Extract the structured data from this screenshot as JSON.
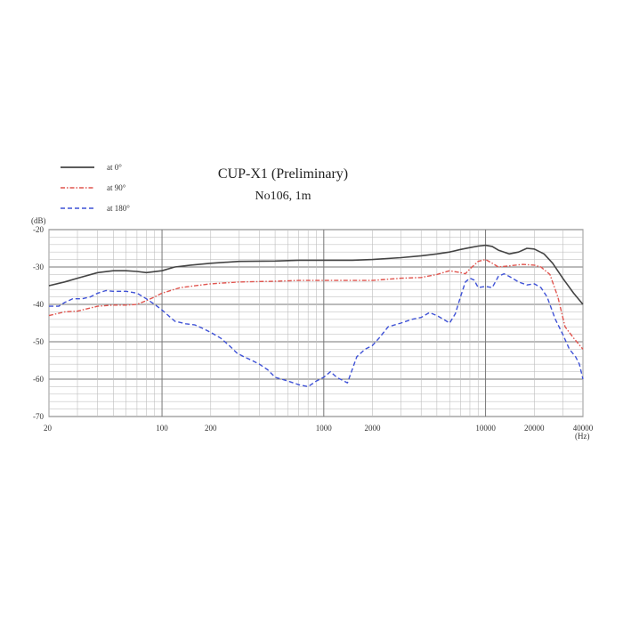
{
  "chart_data": {
    "type": "line",
    "title": "CUP-X1 (Preliminary)",
    "subtitle": "No106, 1m",
    "ylabel": "(dB)",
    "xlabel": "(Hz)",
    "xscale": "log",
    "xlim": [
      20,
      40000
    ],
    "ylim": [
      -70,
      -20
    ],
    "grid": true,
    "legend_position": "top-left",
    "x_ticks": [
      {
        "value": 20,
        "label": "20"
      },
      {
        "value": 100,
        "label": "100"
      },
      {
        "value": 200,
        "label": "200"
      },
      {
        "value": 1000,
        "label": "1000"
      },
      {
        "value": 2000,
        "label": "2000"
      },
      {
        "value": 10000,
        "label": "10000"
      },
      {
        "value": 20000,
        "label": "20000"
      },
      {
        "value": 40000,
        "label": "40000"
      }
    ],
    "y_ticks": [
      {
        "value": -20,
        "label": "-20"
      },
      {
        "value": -30,
        "label": "-30"
      },
      {
        "value": -40,
        "label": "-40"
      },
      {
        "value": -50,
        "label": "-50"
      },
      {
        "value": -60,
        "label": "-60"
      },
      {
        "value": -70,
        "label": "-70"
      }
    ],
    "series": [
      {
        "name": "at 0°",
        "color": "#444444",
        "dash": "solid",
        "points": [
          [
            20,
            -35
          ],
          [
            25,
            -34
          ],
          [
            30,
            -33
          ],
          [
            40,
            -31.5
          ],
          [
            50,
            -31
          ],
          [
            60,
            -31
          ],
          [
            70,
            -31.2
          ],
          [
            80,
            -31.5
          ],
          [
            100,
            -31
          ],
          [
            120,
            -30
          ],
          [
            150,
            -29.5
          ],
          [
            200,
            -29
          ],
          [
            300,
            -28.5
          ],
          [
            500,
            -28.4
          ],
          [
            700,
            -28.2
          ],
          [
            1000,
            -28.2
          ],
          [
            1500,
            -28.2
          ],
          [
            2000,
            -28
          ],
          [
            3000,
            -27.5
          ],
          [
            4000,
            -27
          ],
          [
            5000,
            -26.5
          ],
          [
            6000,
            -26
          ],
          [
            7000,
            -25.3
          ],
          [
            8000,
            -24.8
          ],
          [
            9000,
            -24.4
          ],
          [
            10000,
            -24.2
          ],
          [
            11000,
            -24.5
          ],
          [
            12000,
            -25.5
          ],
          [
            14000,
            -26.5
          ],
          [
            16000,
            -26
          ],
          [
            18000,
            -25
          ],
          [
            20000,
            -25.2
          ],
          [
            23000,
            -26.5
          ],
          [
            26000,
            -29
          ],
          [
            30000,
            -33
          ],
          [
            35000,
            -37
          ],
          [
            40000,
            -40
          ]
        ]
      },
      {
        "name": "at 90°",
        "color": "#e0554f",
        "dash": "dashdot",
        "points": [
          [
            20,
            -43
          ],
          [
            25,
            -42
          ],
          [
            30,
            -41.8
          ],
          [
            40,
            -40.5
          ],
          [
            50,
            -40.2
          ],
          [
            60,
            -40.2
          ],
          [
            70,
            -40
          ],
          [
            80,
            -39
          ],
          [
            90,
            -38
          ],
          [
            100,
            -37
          ],
          [
            130,
            -35.5
          ],
          [
            200,
            -34.5
          ],
          [
            300,
            -34
          ],
          [
            500,
            -33.8
          ],
          [
            700,
            -33.6
          ],
          [
            1000,
            -33.6
          ],
          [
            1500,
            -33.6
          ],
          [
            2000,
            -33.6
          ],
          [
            3000,
            -33
          ],
          [
            4000,
            -32.8
          ],
          [
            5000,
            -32
          ],
          [
            6000,
            -31
          ],
          [
            7000,
            -31.5
          ],
          [
            7500,
            -31.8
          ],
          [
            8000,
            -30.5
          ],
          [
            9000,
            -28.5
          ],
          [
            10000,
            -28
          ],
          [
            11000,
            -29
          ],
          [
            12000,
            -30
          ],
          [
            14000,
            -29.7
          ],
          [
            17000,
            -29.3
          ],
          [
            20000,
            -29.5
          ],
          [
            22000,
            -30
          ],
          [
            25000,
            -32
          ],
          [
            28000,
            -38
          ],
          [
            31000,
            -46
          ],
          [
            35000,
            -49
          ],
          [
            40000,
            -52
          ]
        ]
      },
      {
        "name": "at 180°",
        "color": "#3f52d6",
        "dash": "dashed",
        "points": [
          [
            20,
            -40.5
          ],
          [
            23,
            -40.5
          ],
          [
            25,
            -39.5
          ],
          [
            28,
            -38.5
          ],
          [
            32,
            -38.5
          ],
          [
            36,
            -38
          ],
          [
            40,
            -37
          ],
          [
            45,
            -36.3
          ],
          [
            50,
            -36.5
          ],
          [
            60,
            -36.5
          ],
          [
            70,
            -37
          ],
          [
            80,
            -38.5
          ],
          [
            90,
            -40
          ],
          [
            100,
            -41.5
          ],
          [
            120,
            -44.5
          ],
          [
            140,
            -45.2
          ],
          [
            160,
            -45.5
          ],
          [
            180,
            -46.5
          ],
          [
            200,
            -47.5
          ],
          [
            230,
            -49
          ],
          [
            260,
            -51
          ],
          [
            290,
            -53
          ],
          [
            320,
            -54
          ],
          [
            360,
            -55
          ],
          [
            400,
            -56
          ],
          [
            450,
            -57.5
          ],
          [
            500,
            -59.5
          ],
          [
            600,
            -60.5
          ],
          [
            700,
            -61.5
          ],
          [
            800,
            -62
          ],
          [
            900,
            -60.5
          ],
          [
            1000,
            -59.5
          ],
          [
            1100,
            -58
          ],
          [
            1200,
            -59.5
          ],
          [
            1400,
            -61
          ],
          [
            1600,
            -54
          ],
          [
            1800,
            -52
          ],
          [
            2000,
            -51
          ],
          [
            2200,
            -49
          ],
          [
            2500,
            -46
          ],
          [
            3000,
            -45
          ],
          [
            3500,
            -44
          ],
          [
            4000,
            -43.5
          ],
          [
            4500,
            -42.2
          ],
          [
            5000,
            -43
          ],
          [
            5500,
            -44
          ],
          [
            6000,
            -45
          ],
          [
            6500,
            -42.5
          ],
          [
            7000,
            -38
          ],
          [
            7500,
            -34
          ],
          [
            8000,
            -33
          ],
          [
            8500,
            -33.5
          ],
          [
            9000,
            -35.5
          ],
          [
            10000,
            -35.2
          ],
          [
            11000,
            -35.5
          ],
          [
            12000,
            -32.5
          ],
          [
            13000,
            -31.8
          ],
          [
            14000,
            -32.5
          ],
          [
            16000,
            -34
          ],
          [
            18000,
            -34.8
          ],
          [
            20000,
            -34.5
          ],
          [
            22000,
            -35.5
          ],
          [
            24000,
            -38
          ],
          [
            27000,
            -44
          ],
          [
            30000,
            -48
          ],
          [
            33000,
            -52
          ],
          [
            36000,
            -54
          ],
          [
            38000,
            -56
          ],
          [
            40000,
            -60
          ]
        ]
      }
    ]
  }
}
